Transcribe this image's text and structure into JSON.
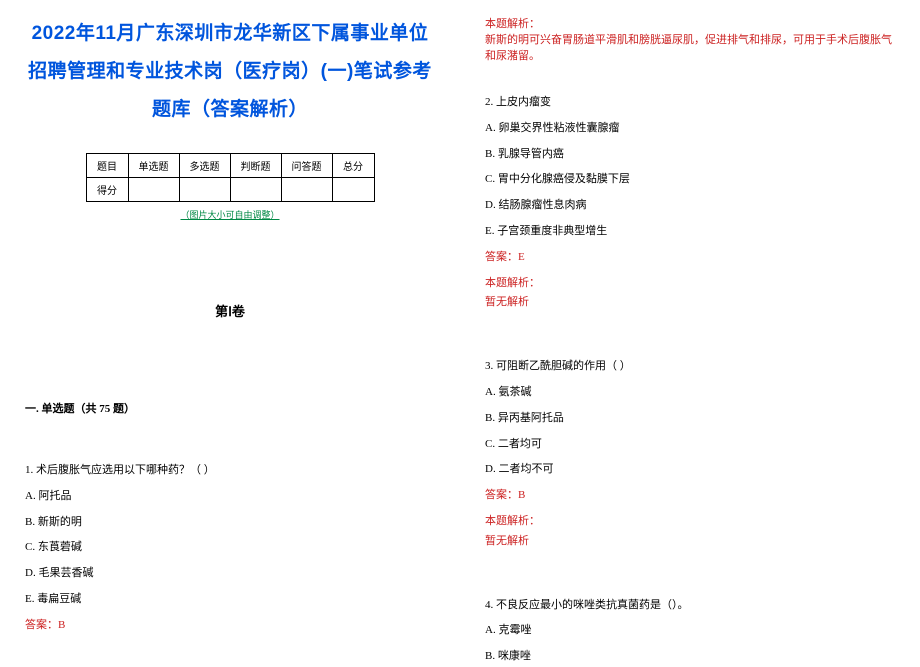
{
  "title_line1": "2022年11月广东深圳市龙华新区下属事业单位",
  "title_line2": "招聘管理和专业技术岗（医疗岗）(一)笔试参考",
  "title_line3": "题库（答案解析）",
  "score_table": {
    "headers": [
      "题目",
      "单选题",
      "多选题",
      "判断题",
      "问答题",
      "总分"
    ],
    "row2_label": "得分"
  },
  "img_note": "（图片大小可自由调整）",
  "vol_title": "第Ⅰ卷",
  "section_title": "一. 单选题（共 75 题）",
  "q1": {
    "text": "1. 术后腹胀气应选用以下哪种药？（ ）",
    "a": "A. 阿托品",
    "b": "B. 新斯的明",
    "c": "C. 东莨菪碱",
    "d": "D. 毛果芸香碱",
    "e": "E. 毒扁豆碱",
    "answer": "答案：B",
    "explain_head": "本题解析：",
    "explain_body": "新斯的明可兴奋胃肠道平滑肌和膀胱逼尿肌，促进排气和排尿，可用于手术后腹胀气和尿潴留。"
  },
  "q2": {
    "text": "2. 上皮内瘤变",
    "a": "A. 卵巢交界性粘液性囊腺瘤",
    "b": "B. 乳腺导管内癌",
    "c": "C. 胃中分化腺癌侵及黏膜下层",
    "d": "D. 结肠腺瘤性息肉病",
    "e": "E. 子宫颈重度非典型增生",
    "answer": "答案：E",
    "explain_head": "本题解析：",
    "explain_body": "暂无解析"
  },
  "q3": {
    "text": "3. 可阻断乙酰胆碱的作用（ ）",
    "a": "A. 氨茶碱",
    "b": "B. 异丙基阿托品",
    "c": "C. 二者均可",
    "d": "D. 二者均不可",
    "answer": "答案：B",
    "explain_head": "本题解析：",
    "explain_body": "暂无解析"
  },
  "q4": {
    "text": "4. 不良反应最小的咪唑类抗真菌药是（）。",
    "a": "A. 克霉唑",
    "b": "B. 咪康唑"
  },
  "colors": {
    "title_color": "#0055dd",
    "answer_color": "#cc2222",
    "note_color": "#008844",
    "text_color": "#000000",
    "bg_color": "#ffffff"
  }
}
